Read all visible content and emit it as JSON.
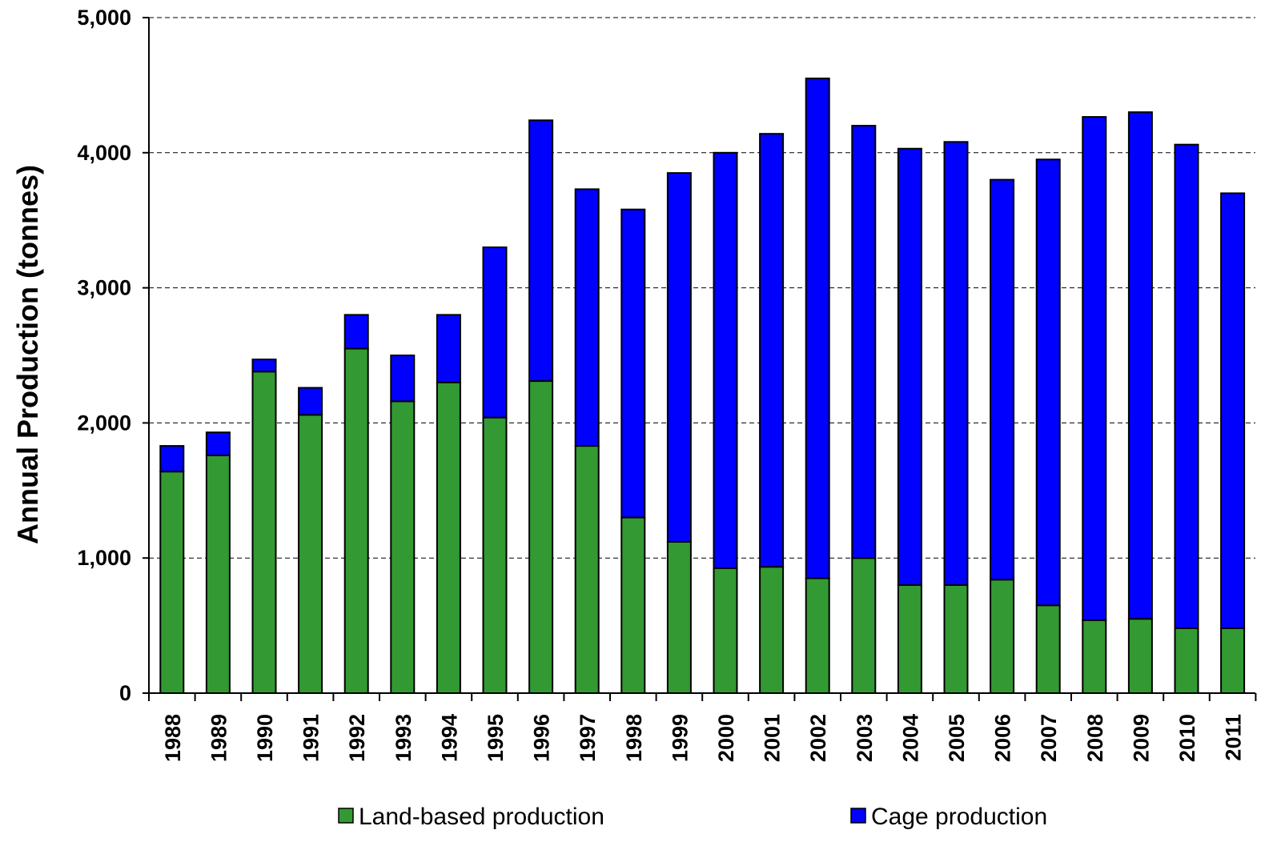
{
  "chart_data": {
    "type": "bar",
    "stacked": true,
    "ylabel": "Annual Production (tonnes)",
    "xlabel": "",
    "ylim": [
      0,
      5000
    ],
    "yticks": [
      0,
      1000,
      2000,
      3000,
      4000,
      5000
    ],
    "ytick_labels": [
      "0",
      "1,000",
      "2,000",
      "3,000",
      "4,000",
      "5,000"
    ],
    "grid": true,
    "legend_position": "bottom",
    "categories": [
      "1988",
      "1989",
      "1990",
      "1991",
      "1992",
      "1993",
      "1994",
      "1995",
      "1996",
      "1997",
      "1998",
      "1999",
      "2000",
      "2001",
      "2002",
      "2003",
      "2004",
      "2005",
      "2006",
      "2007",
      "2008",
      "2009",
      "2010",
      "2011"
    ],
    "series": [
      {
        "name": "Land-based production",
        "color": "#339933",
        "values": [
          1640,
          1760,
          2380,
          2060,
          2550,
          2160,
          2300,
          2040,
          2310,
          1830,
          1300,
          1120,
          925,
          935,
          850,
          1000,
          800,
          800,
          840,
          650,
          540,
          550,
          480,
          480
        ]
      },
      {
        "name": "Cage production",
        "color": "#0000ff",
        "values": [
          190,
          170,
          90,
          200,
          250,
          340,
          500,
          1260,
          1930,
          1900,
          2280,
          2730,
          3075,
          3205,
          3700,
          3200,
          3230,
          3280,
          2960,
          3300,
          3725,
          3750,
          3580,
          3220
        ]
      }
    ]
  }
}
